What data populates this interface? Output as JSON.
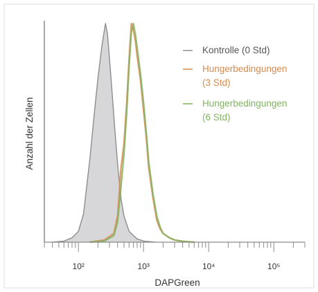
{
  "chart_data": {
    "type": "area",
    "xlabel": "DAPGreen",
    "ylabel": "Anzahl der Zellen",
    "x_scale": "log",
    "xlim": [
      30,
      300000
    ],
    "ylim": [
      0,
      100
    ],
    "grid": false,
    "legend_position": "top-right",
    "x_ticks": [
      {
        "value": 100,
        "label": "10²"
      },
      {
        "value": 1000,
        "label": "10³"
      },
      {
        "value": 10000,
        "label": "10⁴"
      },
      {
        "value": 100000,
        "label": "10⁵"
      }
    ],
    "series": [
      {
        "name": "Kontrolle (0 Std)",
        "color": "#8c8c8c",
        "fill": "#d3d3d5",
        "x": [
          40,
          60,
          80,
          100,
          120,
          150,
          180,
          200,
          230,
          260,
          280,
          300,
          330,
          360,
          400,
          450,
          500,
          600,
          700,
          800,
          900,
          1000,
          1200,
          1500
        ],
        "y": [
          0,
          0.5,
          2,
          5,
          13,
          38,
          62,
          75,
          90,
          100,
          95,
          84,
          68,
          53,
          36,
          20,
          12,
          5,
          3,
          1.5,
          1,
          0.5,
          0.3,
          0
        ]
      },
      {
        "name": "Hungerbedingungen\n(3 Std)",
        "color": "#d98a4e",
        "fill": "none",
        "x": [
          150,
          250,
          350,
          400,
          450,
          500,
          550,
          600,
          650,
          700,
          750,
          800,
          900,
          1000,
          1100,
          1200,
          1400,
          1600,
          1800,
          2000,
          2500,
          3000,
          4000,
          6000
        ],
        "y": [
          0,
          1,
          4,
          12,
          34,
          45,
          63,
          84,
          100,
          97,
          92,
          85,
          74,
          60,
          48,
          34,
          20,
          10,
          6,
          4,
          2,
          1,
          0.4,
          0
        ]
      },
      {
        "name": "Hungerbedingungen\n(6 Std)",
        "color": "#7fb35f",
        "fill": "none",
        "x": [
          150,
          250,
          350,
          400,
          450,
          500,
          550,
          600,
          650,
          700,
          750,
          800,
          900,
          1000,
          1100,
          1200,
          1400,
          1600,
          1800,
          2000,
          2500,
          3000,
          4000,
          6000
        ],
        "y": [
          0,
          0.5,
          3,
          9,
          25,
          40,
          58,
          80,
          96,
          100,
          95,
          89,
          77,
          64,
          51,
          37,
          22,
          12,
          7,
          4,
          2,
          1,
          0.4,
          0
        ]
      }
    ]
  }
}
